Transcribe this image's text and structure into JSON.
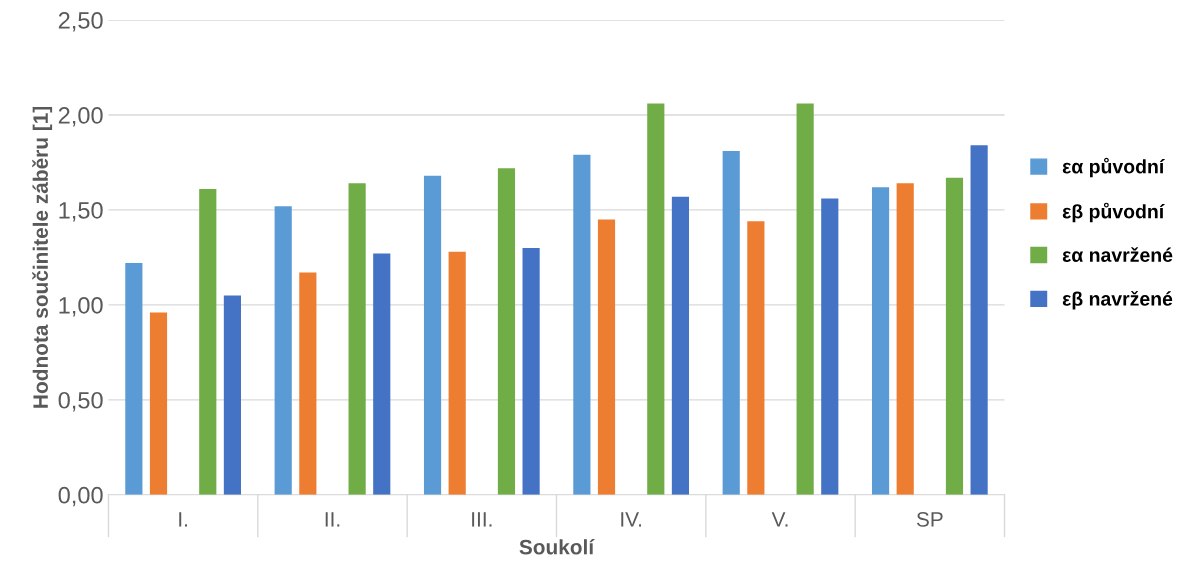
{
  "chart_data": {
    "type": "bar",
    "xlabel": "Soukolí",
    "ylabel": "Hodnota součinitele záběru [1]",
    "categories": [
      "I.",
      "II.",
      "III.",
      "IV.",
      "V.",
      "SP"
    ],
    "series": [
      {
        "name": "εα původní",
        "color": "#5b9bd5",
        "values": [
          1.22,
          1.52,
          1.68,
          1.79,
          1.81,
          1.62
        ]
      },
      {
        "name": "εβ původní",
        "color": "#ed7d31",
        "values": [
          0.96,
          1.17,
          1.28,
          1.45,
          1.44,
          1.64
        ]
      },
      {
        "name": "εα navržené",
        "color": "#70ad47",
        "values": [
          1.61,
          1.64,
          1.72,
          2.06,
          2.06,
          1.67
        ]
      },
      {
        "name": "εβ navržené",
        "color": "#4472c4",
        "values": [
          1.05,
          1.27,
          1.3,
          1.57,
          1.56,
          1.84
        ]
      }
    ],
    "ylim": [
      0,
      2.5
    ],
    "yticks": [
      {
        "value": 0,
        "label": "0,00"
      },
      {
        "value": 0.5,
        "label": "0,50"
      },
      {
        "value": 1,
        "label": "1,00"
      },
      {
        "value": 1.5,
        "label": "1,50"
      },
      {
        "value": 2,
        "label": "2,00"
      },
      {
        "value": 2.5,
        "label": "2,50"
      }
    ],
    "grid": "y",
    "legend": "right"
  }
}
